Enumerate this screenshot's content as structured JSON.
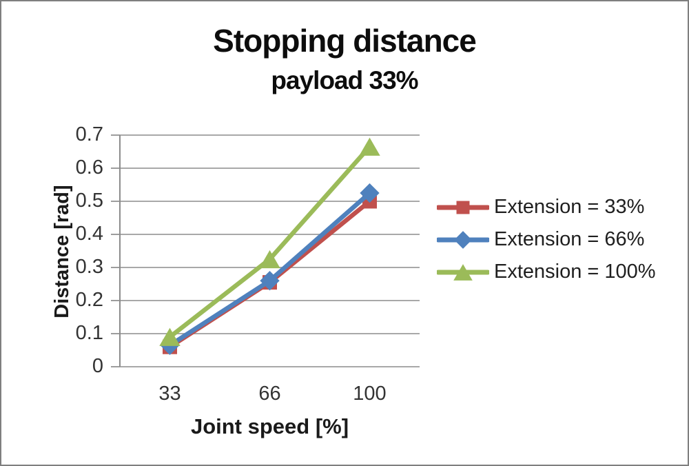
{
  "chart_data": {
    "type": "line",
    "title": "Stopping distance",
    "subtitle": "payload 33%",
    "xlabel": "Joint speed [%]",
    "ylabel": "Distance [rad]",
    "categories": [
      "33",
      "66",
      "100"
    ],
    "series": [
      {
        "name": "Extension = 33%",
        "color": "#C0504D",
        "marker": "square",
        "values": [
          0.06,
          0.255,
          0.5
        ]
      },
      {
        "name": "Extension = 66%",
        "color": "#4F81BD",
        "marker": "diamond",
        "values": [
          0.065,
          0.26,
          0.525
        ]
      },
      {
        "name": "Extension = 100%",
        "color": "#9BBB59",
        "marker": "triangle",
        "values": [
          0.09,
          0.325,
          0.665
        ]
      }
    ],
    "ylim": [
      0,
      0.7
    ],
    "ytick_step": 0.1,
    "ytick_labels": [
      "0",
      "0.1",
      "0.2",
      "0.3",
      "0.4",
      "0.5",
      "0.6",
      "0.7"
    ],
    "grid": true,
    "legend_position": "right",
    "colors": {
      "grid": "#9c9c9c",
      "axis": "#8c8c8c",
      "tick_text": "#333333",
      "title_text": "#0d0d0d",
      "page_border": "#7f7f7f"
    }
  }
}
